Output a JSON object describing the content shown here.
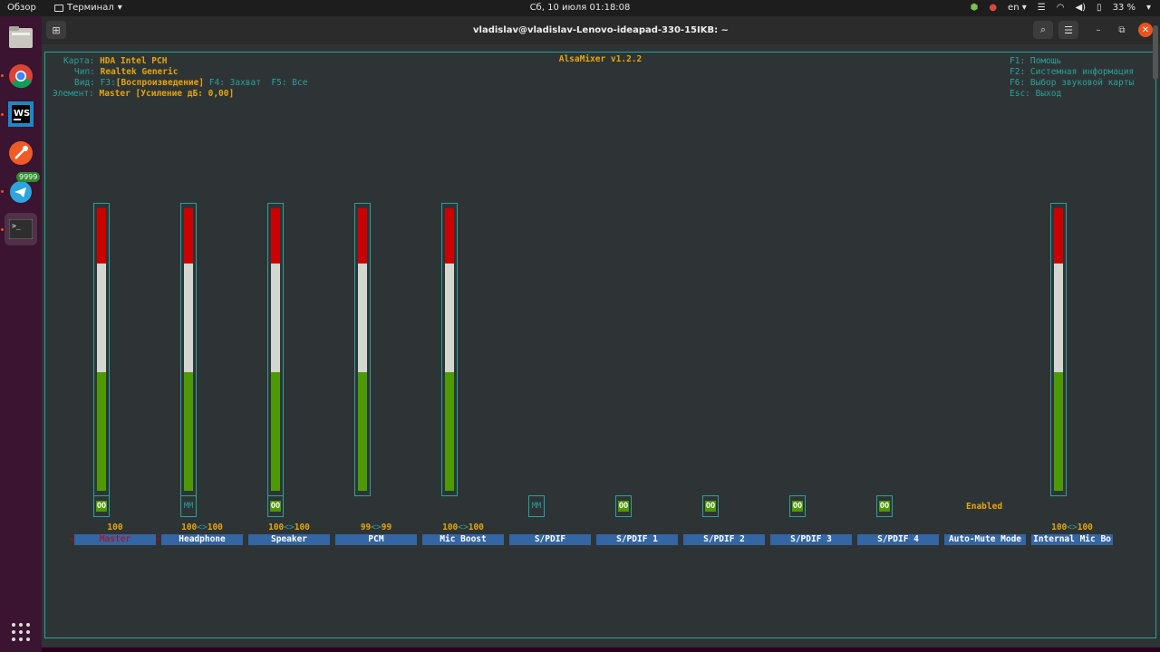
{
  "topbar": {
    "overview": "Обзор",
    "app_name": "Терминал",
    "clock": "Сб, 10 июля  01:18:08",
    "lang": "en",
    "battery": "33 %"
  },
  "dock": {
    "telegram_badge": "9999"
  },
  "window": {
    "title": "vladislav@vladislav-Lenovo-ideapad-330-15IKB: ~"
  },
  "alsa": {
    "title": "AlsaMixer v1.2.2",
    "card_label": "Карта:",
    "card_value": "HDA Intel PCH",
    "chip_label": "Чип:",
    "chip_value": "Realtek Generic",
    "view_label": "Вид:",
    "view_f3": "F3:",
    "view_playback": "[Воспроизведение]",
    "view_f4": "F4: Захват",
    "view_f5": "F5: Все",
    "element_label": "Элемент:",
    "element_value": "Master [Усиление дБ: 0,00]",
    "help": [
      "F1: Помощь",
      "F2: Системная информация",
      "F6: Выбор звуковой карты",
      "Esc: Выход"
    ],
    "enabled_text": "Enabled",
    "channels": [
      {
        "name": "Master",
        "volume_left": "100",
        "volume_sep": "",
        "volume_right": "",
        "level": 100,
        "mute": "OO",
        "selected": true
      },
      {
        "name": "Headphone",
        "volume_left": "100",
        "volume_sep": "<>",
        "volume_right": "100",
        "level": 100,
        "mute": "MM",
        "selected": false
      },
      {
        "name": "Speaker",
        "volume_left": "100",
        "volume_sep": "<>",
        "volume_right": "100",
        "level": 100,
        "mute": "OO",
        "selected": false
      },
      {
        "name": "PCM",
        "volume_left": "99",
        "volume_sep": "<>",
        "volume_right": "99",
        "level": 99,
        "mute": "",
        "selected": false
      },
      {
        "name": "Mic Boost",
        "volume_left": "100",
        "volume_sep": "<>",
        "volume_right": "100",
        "level": 100,
        "mute": "",
        "selected": false
      },
      {
        "name": "S/PDIF",
        "volume_left": "",
        "volume_sep": "",
        "volume_right": "",
        "level": null,
        "mute": "MM",
        "selected": false
      },
      {
        "name": "S/PDIF 1",
        "volume_left": "",
        "volume_sep": "",
        "volume_right": "",
        "level": null,
        "mute": "OO",
        "selected": false
      },
      {
        "name": "S/PDIF 2",
        "volume_left": "",
        "volume_sep": "",
        "volume_right": "",
        "level": null,
        "mute": "OO",
        "selected": false
      },
      {
        "name": "S/PDIF 3",
        "volume_left": "",
        "volume_sep": "",
        "volume_right": "",
        "level": null,
        "mute": "OO",
        "selected": false
      },
      {
        "name": "S/PDIF 4",
        "volume_left": "",
        "volume_sep": "",
        "volume_right": "",
        "level": null,
        "mute": "OO",
        "selected": false
      },
      {
        "name": "Auto-Mute Mode",
        "volume_left": "",
        "volume_sep": "",
        "volume_right": "",
        "level": null,
        "mute": "",
        "selected": false
      },
      {
        "name": "Internal Mic Bo",
        "volume_left": "100",
        "volume_sep": "<>",
        "volume_right": "100",
        "level": 100,
        "mute": "",
        "selected": false
      }
    ]
  }
}
